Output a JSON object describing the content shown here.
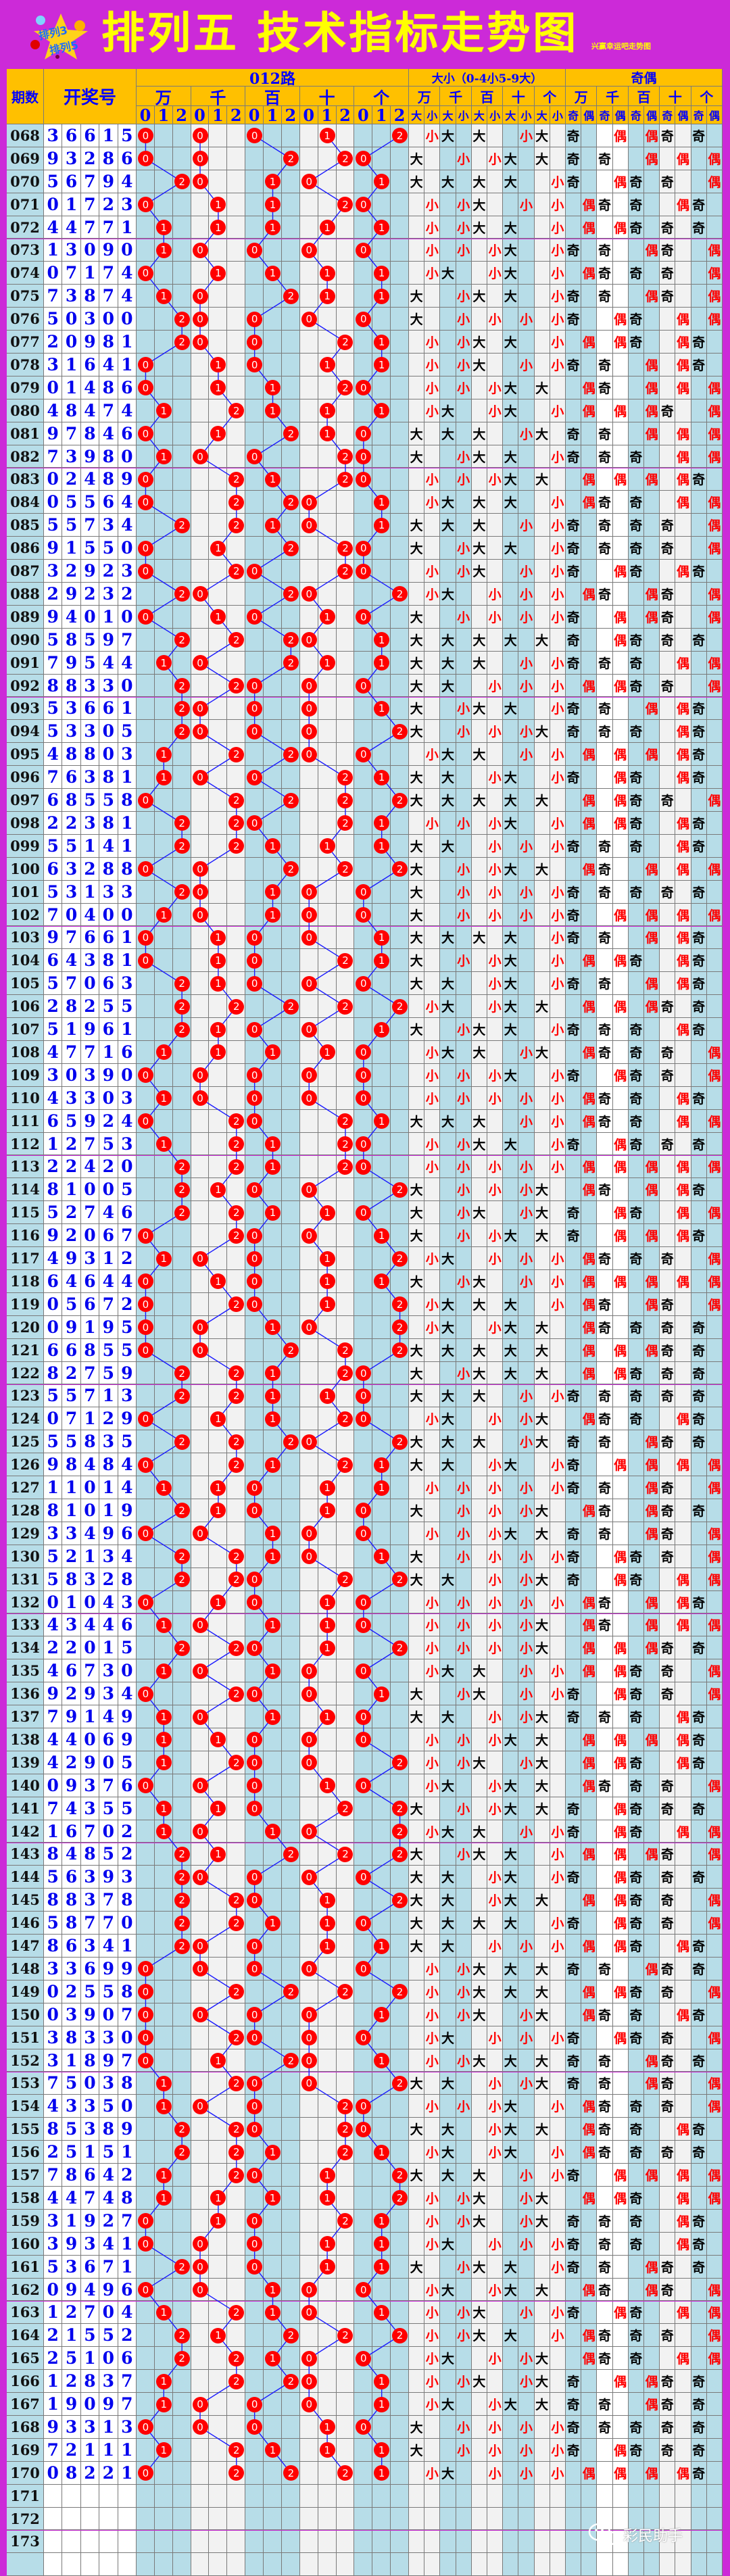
{
  "title": "排列五 技术指标走势图",
  "subtitle": "兴赢幸运吧走势图",
  "logo_text": "排列3 排列5",
  "watermark": "彩民助手",
  "colors": {
    "background": "#cc2ad8",
    "header_bg": "#ffc000",
    "header_text": "#0000ff",
    "title": "#ffff00",
    "circle": "#ff0000",
    "line": "#1a1aff",
    "cell_blue": "#b7dde8",
    "cell_gray": "#f2f2f2",
    "big": "#000000",
    "small": "#ff0000",
    "odd": "#000000",
    "even": "#ff0000"
  },
  "header": {
    "period": "期数",
    "draw": "开奖号",
    "route": "012路",
    "bigsmall": "大小（0-4小5-9大）",
    "oddeven": "奇偶",
    "positions": [
      "万",
      "千",
      "百",
      "十",
      "个"
    ],
    "route_digits": [
      "0",
      "1",
      "2"
    ],
    "bs_labels": [
      "大",
      "小"
    ],
    "oe_labels": [
      "奇",
      "偶"
    ]
  },
  "rows": [
    {
      "period": "068",
      "draw": "36615"
    },
    {
      "period": "069",
      "draw": "93286"
    },
    {
      "period": "070",
      "draw": "56794"
    },
    {
      "period": "071",
      "draw": "01723"
    },
    {
      "period": "072",
      "draw": "44771"
    },
    {
      "period": "073",
      "draw": "13090"
    },
    {
      "period": "074",
      "draw": "07174"
    },
    {
      "period": "075",
      "draw": "73874"
    },
    {
      "period": "076",
      "draw": "50300"
    },
    {
      "period": "077",
      "draw": "20981"
    },
    {
      "period": "078",
      "draw": "31641"
    },
    {
      "period": "079",
      "draw": "01486"
    },
    {
      "period": "080",
      "draw": "48474"
    },
    {
      "period": "081",
      "draw": "97846"
    },
    {
      "period": "082",
      "draw": "73980"
    },
    {
      "period": "083",
      "draw": "02489"
    },
    {
      "period": "084",
      "draw": "05564"
    },
    {
      "period": "085",
      "draw": "55734"
    },
    {
      "period": "086",
      "draw": "91550"
    },
    {
      "period": "087",
      "draw": "32923"
    },
    {
      "period": "088",
      "draw": "29232"
    },
    {
      "period": "089",
      "draw": "94010"
    },
    {
      "period": "090",
      "draw": "58597"
    },
    {
      "period": "091",
      "draw": "79544"
    },
    {
      "period": "092",
      "draw": "88330"
    },
    {
      "period": "093",
      "draw": "53661"
    },
    {
      "period": "094",
      "draw": "53305"
    },
    {
      "period": "095",
      "draw": "48803"
    },
    {
      "period": "096",
      "draw": "76381"
    },
    {
      "period": "097",
      "draw": "68558"
    },
    {
      "period": "098",
      "draw": "22381"
    },
    {
      "period": "099",
      "draw": "55141"
    },
    {
      "period": "100",
      "draw": "63288"
    },
    {
      "period": "101",
      "draw": "53133"
    },
    {
      "period": "102",
      "draw": "70400"
    },
    {
      "period": "103",
      "draw": "97661"
    },
    {
      "period": "104",
      "draw": "64381"
    },
    {
      "period": "105",
      "draw": "57063"
    },
    {
      "period": "106",
      "draw": "28255"
    },
    {
      "period": "107",
      "draw": "51961"
    },
    {
      "period": "108",
      "draw": "47716"
    },
    {
      "period": "109",
      "draw": "30390"
    },
    {
      "period": "110",
      "draw": "43303"
    },
    {
      "period": "111",
      "draw": "65924"
    },
    {
      "period": "112",
      "draw": "12753"
    },
    {
      "period": "113",
      "draw": "22420"
    },
    {
      "period": "114",
      "draw": "81005"
    },
    {
      "period": "115",
      "draw": "52746"
    },
    {
      "period": "116",
      "draw": "92067"
    },
    {
      "period": "117",
      "draw": "49312"
    },
    {
      "period": "118",
      "draw": "64644"
    },
    {
      "period": "119",
      "draw": "05672"
    },
    {
      "period": "120",
      "draw": "09195"
    },
    {
      "period": "121",
      "draw": "66855"
    },
    {
      "period": "122",
      "draw": "82759"
    },
    {
      "period": "123",
      "draw": "55713"
    },
    {
      "period": "124",
      "draw": "07129"
    },
    {
      "period": "125",
      "draw": "55835"
    },
    {
      "period": "126",
      "draw": "98484"
    },
    {
      "period": "127",
      "draw": "11014"
    },
    {
      "period": "128",
      "draw": "81019"
    },
    {
      "period": "129",
      "draw": "33496"
    },
    {
      "period": "130",
      "draw": "52134"
    },
    {
      "period": "131",
      "draw": "58328"
    },
    {
      "period": "132",
      "draw": "01043"
    },
    {
      "period": "133",
      "draw": "43446"
    },
    {
      "period": "134",
      "draw": "22015"
    },
    {
      "period": "135",
      "draw": "46730"
    },
    {
      "period": "136",
      "draw": "92934"
    },
    {
      "period": "137",
      "draw": "79149"
    },
    {
      "period": "138",
      "draw": "44069"
    },
    {
      "period": "139",
      "draw": "42905"
    },
    {
      "period": "140",
      "draw": "09376"
    },
    {
      "period": "141",
      "draw": "74355"
    },
    {
      "period": "142",
      "draw": "16702"
    },
    {
      "period": "143",
      "draw": "84852"
    },
    {
      "period": "144",
      "draw": "56393"
    },
    {
      "period": "145",
      "draw": "88378"
    },
    {
      "period": "146",
      "draw": "58770"
    },
    {
      "period": "147",
      "draw": "86341"
    },
    {
      "period": "148",
      "draw": "33699"
    },
    {
      "period": "149",
      "draw": "02558"
    },
    {
      "period": "150",
      "draw": "03907"
    },
    {
      "period": "151",
      "draw": "38330"
    },
    {
      "period": "152",
      "draw": "31897"
    },
    {
      "period": "153",
      "draw": "75038"
    },
    {
      "period": "154",
      "draw": "43350"
    },
    {
      "period": "155",
      "draw": "85389"
    },
    {
      "period": "156",
      "draw": "25151"
    },
    {
      "period": "157",
      "draw": "78642"
    },
    {
      "period": "158",
      "draw": "44748"
    },
    {
      "period": "159",
      "draw": "31927"
    },
    {
      "period": "160",
      "draw": "39341"
    },
    {
      "period": "161",
      "draw": "53671"
    },
    {
      "period": "162",
      "draw": "09496"
    },
    {
      "period": "163",
      "draw": "12704"
    },
    {
      "period": "164",
      "draw": "21552"
    },
    {
      "period": "165",
      "draw": "25106"
    },
    {
      "period": "166",
      "draw": "12837"
    },
    {
      "period": "167",
      "draw": "19097"
    },
    {
      "period": "168",
      "draw": "93313"
    },
    {
      "period": "169",
      "draw": "72111"
    },
    {
      "period": "170",
      "draw": "08221"
    },
    {
      "period": "171",
      "draw": ""
    },
    {
      "period": "172",
      "draw": ""
    },
    {
      "period": "173",
      "draw": ""
    },
    {
      "period": "",
      "draw": ""
    }
  ]
}
